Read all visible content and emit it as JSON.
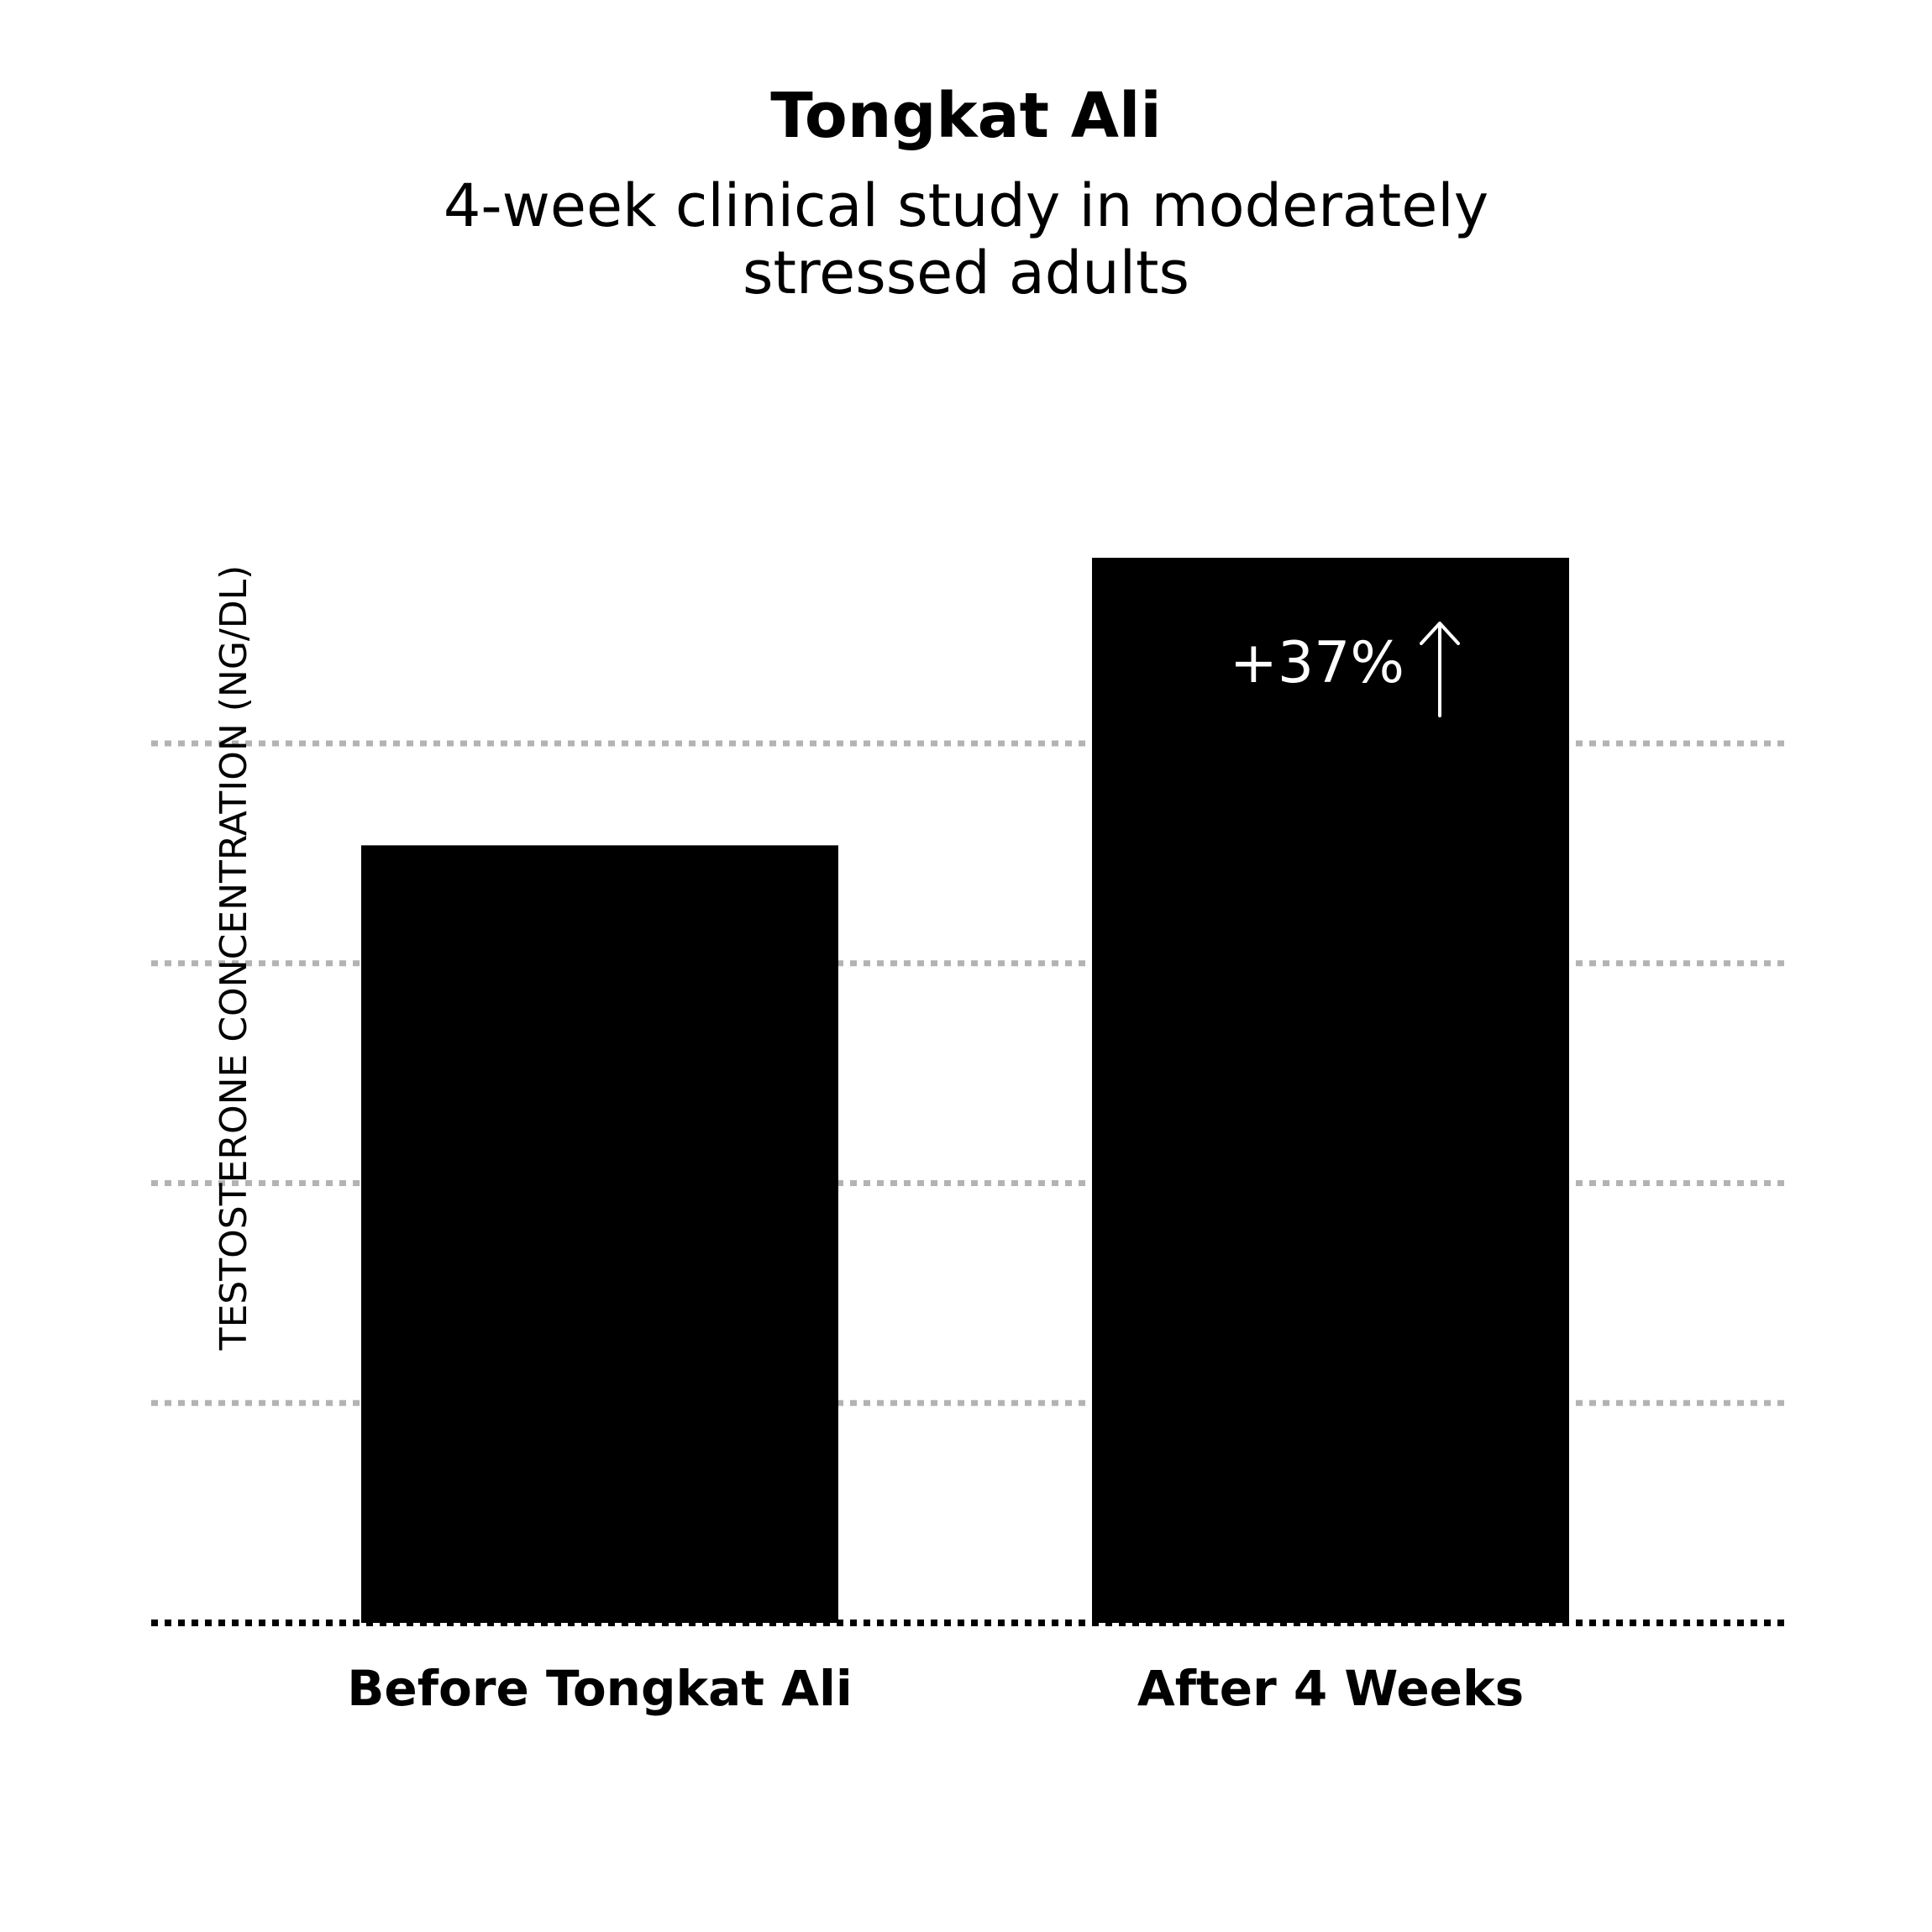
{
  "chart_data": {
    "type": "bar",
    "title": "Tongkat Ali",
    "subtitle": "4-week clinical study in moderately stressed adults",
    "ylabel": "TESTOSTERONE CONCENTRATION (NG/DL)",
    "xlabel": "",
    "categories": [
      "Before Tongkat Ali",
      "After 4 Weeks"
    ],
    "values": [
      73,
      100
    ],
    "ylim": [
      0,
      100
    ],
    "annotations": [
      {
        "category": "After 4 Weeks",
        "text": "+37%"
      }
    ],
    "grid": true,
    "gridlines": 5,
    "colors": {
      "bar": "#000000",
      "grid": "#b3b3b3",
      "baseline": "#000000",
      "annotation": "#ffffff"
    }
  }
}
